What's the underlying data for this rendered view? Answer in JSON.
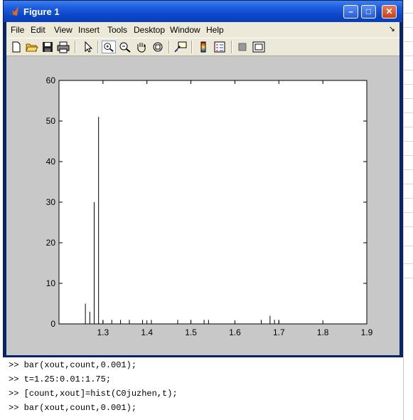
{
  "window": {
    "title": "Figure 1"
  },
  "menu": [
    "File",
    "Edit",
    "View",
    "Insert",
    "Tools",
    "Desktop",
    "Window",
    "Help"
  ],
  "toolbar": {
    "icons": [
      "new-figure-icon",
      "open-file-icon",
      "save-icon",
      "print-icon",
      "edit-plot-arrow-icon",
      "zoom-in-icon",
      "zoom-out-icon",
      "pan-hand-icon",
      "rotate-3d-icon",
      "data-cursor-icon",
      "colorbar-icon",
      "legend-icon",
      "hide-plot-tools-icon",
      "show-plot-tools-icon"
    ],
    "active": "zoom-in-icon"
  },
  "chart_data": {
    "type": "bar",
    "xlim": [
      1.2,
      1.9
    ],
    "ylim": [
      0,
      60
    ],
    "xticks": [
      "1.3",
      "1.4",
      "1.5",
      "1.6",
      "1.7",
      "1.8",
      "1.9"
    ],
    "yticks": [
      "0",
      "10",
      "20",
      "30",
      "40",
      "50",
      "60"
    ],
    "x": [
      1.26,
      1.27,
      1.28,
      1.29,
      1.3,
      1.32,
      1.34,
      1.36,
      1.39,
      1.41,
      1.47,
      1.5,
      1.53,
      1.54,
      1.66,
      1.68,
      1.69,
      1.7
    ],
    "values": [
      5,
      3,
      30,
      51,
      1,
      1,
      1,
      1,
      1,
      1,
      1,
      1,
      1,
      1,
      1,
      2,
      1,
      1
    ],
    "bar_width": 0.001,
    "color": "#000000",
    "grid": false
  },
  "command_window": {
    "lines": [
      ">> bar(xout,count,0.001);",
      ">> t=1.25:0.01:1.75;",
      ">> [count,xout]=hist(C0juzhen,t);",
      ">> bar(xout,count,0.001);"
    ]
  }
}
